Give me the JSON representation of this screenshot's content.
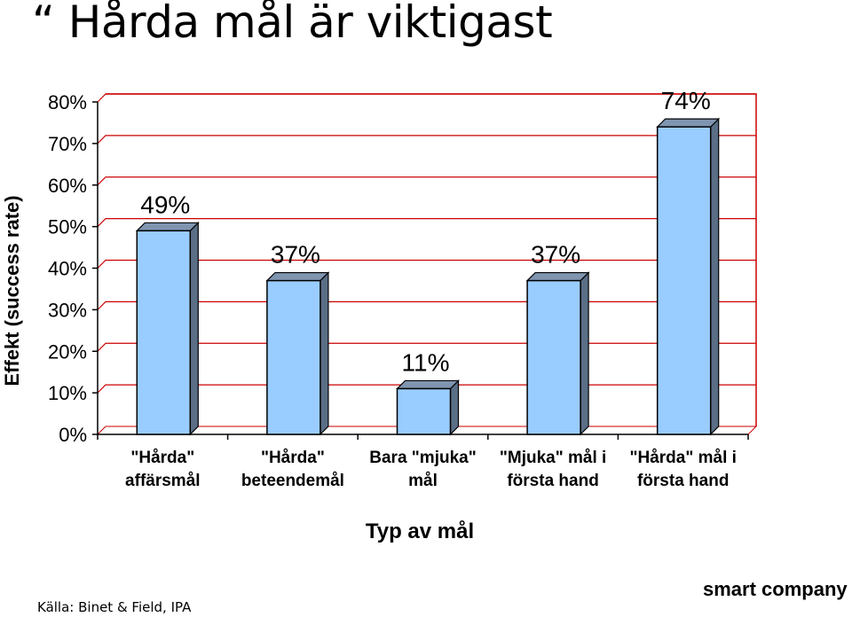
{
  "page": {
    "title": "“ Hårda  mål är viktigast",
    "source": "Källa: Binet & Field, IPA",
    "brand": "smart company"
  },
  "chart_data": {
    "type": "bar",
    "title": "",
    "xlabel": "Typ av mål",
    "ylabel": "Effekt (success rate)",
    "ylim": [
      0,
      80
    ],
    "yticks": [
      "0%",
      "10%",
      "20%",
      "30%",
      "40%",
      "50%",
      "60%",
      "70%",
      "80%"
    ],
    "categories": [
      [
        "\"Hårda\"",
        "affärsmål"
      ],
      [
        "\"Hårda\"",
        "beteendemål"
      ],
      [
        "Bara \"mjuka\"",
        "mål"
      ],
      [
        "\"Mjuka\" mål i",
        "första hand"
      ],
      [
        "\"Hårda\" mål i",
        "första hand"
      ]
    ],
    "values": [
      49,
      37,
      11,
      37,
      74
    ],
    "data_labels": [
      "49%",
      "37%",
      "11%",
      "37%",
      "74%"
    ],
    "colors": {
      "bar_front": "#99ccff",
      "bar_side": "#5a6e86",
      "bar_top": "#7f95b0",
      "plot_border": "#cc0000",
      "gridline": "#cc0000"
    },
    "grid": true,
    "legend": "none"
  }
}
